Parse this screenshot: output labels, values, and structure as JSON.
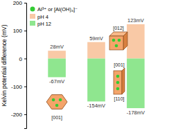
{
  "chart_data": {
    "type": "bar",
    "y_label": "Kelvin potential difference (mV)",
    "categories": [
      null,
      null,
      null
    ],
    "series": [
      {
        "name": "pH 4",
        "color": "#f9c9a6",
        "values": [
          28,
          59,
          123
        ],
        "value_labels": [
          "28mV",
          "59mV",
          "123mV"
        ]
      },
      {
        "name": "pH 12",
        "color": "#8fe68f",
        "values": [
          -67,
          -154,
          -178
        ],
        "value_labels": [
          "-67mV",
          "-154mV",
          "-178mV"
        ]
      }
    ],
    "ylim": [
      -250,
      200
    ],
    "yticks": [
      -200,
      -100,
      0,
      100,
      200
    ],
    "data_labels": true,
    "tick_labels": "y",
    "legend": "top-left",
    "annotations": [
      {
        "text": "Al³⁺ or [Al(OH)₄]⁻",
        "color": "#33cc33"
      },
      {
        "text": "[001]"
      },
      {
        "text": "[012]"
      },
      {
        "text": "[001]"
      },
      {
        "text": "[110]"
      }
    ]
  }
}
